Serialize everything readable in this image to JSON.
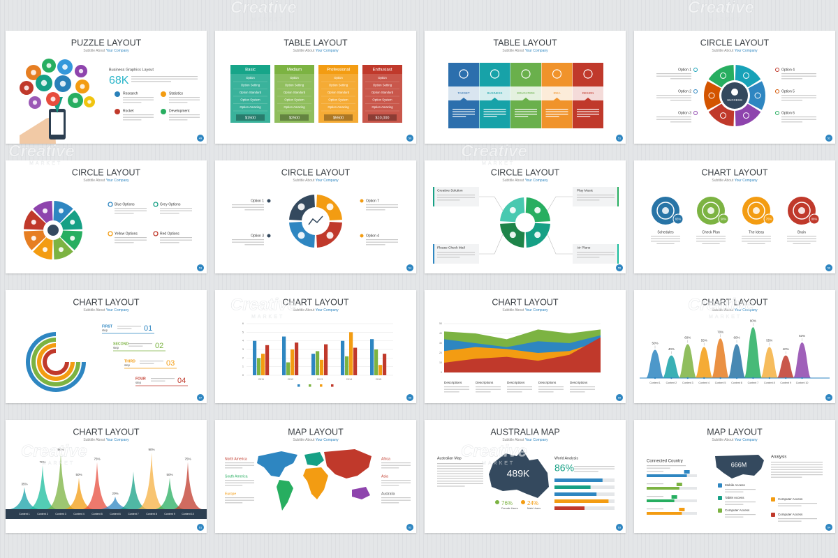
{
  "watermark": {
    "brand": "Creative",
    "sub": "MARKET"
  },
  "slide_subtitle": [
    "Subtitle About",
    "Your Company"
  ],
  "slides": [
    {
      "kind": "puzzle",
      "title": "PUZZLE LAYOUT",
      "page": 49,
      "heading": "Business Graphics Layout",
      "stat": "68K",
      "items": [
        "Research",
        "Statistics",
        "Rocket",
        "Development"
      ]
    },
    {
      "kind": "pricing",
      "title": "TABLE LAYOUT",
      "page": 50,
      "options": [
        "Option",
        "Option Setting",
        "Option Standard",
        "Option System",
        "Option Amazing"
      ],
      "plans": [
        {
          "name": "Basic",
          "color": "#17a589",
          "price": "$1500"
        },
        {
          "name": "Medium",
          "color": "#7cb342",
          "price": "$2500"
        },
        {
          "name": "Professional",
          "color": "#f39c12",
          "price": "$5500"
        },
        {
          "name": "Enthusiast",
          "color": "#c0392b",
          "price": "$10,000"
        }
      ]
    },
    {
      "kind": "steps",
      "title": "TABLE LAYOUT",
      "page": 51,
      "steps": [
        {
          "label": "TARGET",
          "color": "#2c6fad"
        },
        {
          "label": "BUSINESS",
          "color": "#17a2a8"
        },
        {
          "label": "EDUCATION",
          "color": "#6ab04c"
        },
        {
          "label": "IDEA",
          "color": "#f0932b"
        },
        {
          "label": "DESIGN",
          "color": "#c0392b"
        }
      ]
    },
    {
      "kind": "ring",
      "title": "CIRCLE LAYOUT",
      "page": 52,
      "center": "SUCCESS",
      "options": [
        "Option 1",
        "Option 2",
        "Option 3",
        "Option 4",
        "Option 5",
        "Option 6"
      ]
    },
    {
      "kind": "gear",
      "title": "CIRCLE LAYOUT",
      "page": 53,
      "options": [
        "Blue Options",
        "Grey Options",
        "Yellow Options",
        "Red Options"
      ]
    },
    {
      "kind": "cycle",
      "title": "CIRCLE LAYOUT",
      "page": 54,
      "options": [
        "Option 1",
        "Option 7",
        "Option 3",
        "Option 4"
      ]
    },
    {
      "kind": "cycleBoxes",
      "title": "CIRCLE LAYOUT",
      "page": 55,
      "options": [
        "Creative Solution",
        "Play Music",
        "Please Check Mail",
        "Air Plane"
      ]
    },
    {
      "kind": "badges",
      "title": "CHART LAYOUT",
      "page": 56,
      "items": [
        {
          "label": "Schedules",
          "percent": "65%",
          "color": "#2874a6"
        },
        {
          "label": "Check Plan",
          "percent": "50%",
          "color": "#7cb342"
        },
        {
          "label": "The Ideas",
          "percent": "75%",
          "color": "#f39c12"
        },
        {
          "label": "Brain",
          "percent": "86%",
          "color": "#c0392b"
        }
      ]
    },
    {
      "kind": "rings",
      "title": "CHART LAYOUT",
      "page": 57,
      "steps": [
        {
          "name": "FIRST",
          "word": "step",
          "number": "01",
          "color": "#2e86c1"
        },
        {
          "name": "SECOND",
          "word": "step",
          "number": "02",
          "color": "#7cb342"
        },
        {
          "name": "THIRD",
          "word": "step",
          "number": "03",
          "color": "#f39c12"
        },
        {
          "name": "FOUR",
          "word": "step",
          "number": "04",
          "color": "#c0392b"
        }
      ]
    },
    {
      "kind": "bars",
      "title": "CHART LAYOUT",
      "page": 58,
      "categories": [
        "2011",
        "2012",
        "2013",
        "2014",
        "2015"
      ],
      "ylim": [
        0,
        6
      ],
      "yticks": [
        0,
        1,
        2,
        3,
        4,
        5,
        6
      ],
      "series": [
        {
          "color": "#2e86c1",
          "values": [
            4,
            4.5,
            2.5,
            4,
            4.2
          ]
        },
        {
          "color": "#7cb342",
          "values": [
            2,
            1.5,
            2.8,
            2.2,
            3
          ]
        },
        {
          "color": "#f39c12",
          "values": [
            2.5,
            3,
            1.8,
            5,
            1.2
          ]
        },
        {
          "color": "#c0392b",
          "values": [
            3.5,
            3.8,
            3.6,
            3.2,
            2.5
          ]
        }
      ]
    },
    {
      "kind": "area",
      "title": "CHART LAYOUT",
      "page": 59,
      "ylim": [
        0,
        50
      ],
      "yticks": [
        0,
        10,
        20,
        30,
        40,
        50
      ],
      "descriptions": [
        "Descriptions",
        "Descriptions",
        "Descriptions",
        "Descriptions",
        "Descriptions"
      ],
      "layers": [
        {
          "color": "#7cb342",
          "values": [
            42,
            40,
            34,
            44,
            40,
            44
          ]
        },
        {
          "color": "#2e86c1",
          "values": [
            34,
            30,
            26,
            32,
            30,
            38
          ]
        },
        {
          "color": "#f39c12",
          "values": [
            22,
            26,
            24,
            20,
            22,
            32
          ]
        },
        {
          "color": "#c0392b",
          "values": [
            10,
            14,
            16,
            12,
            18,
            36
          ]
        }
      ]
    },
    {
      "kind": "peaks",
      "title": "CHART LAYOUT",
      "page": 60,
      "ylim": [
        0,
        100
      ],
      "categories": [
        "Content 1",
        "Content 2",
        "Content 3",
        "Content 4",
        "Content 5",
        "Content 6",
        "Content 7",
        "Content 8",
        "Content 9",
        "Content 10"
      ],
      "values": [
        50,
        40,
        60,
        55,
        70,
        60,
        90,
        55,
        40,
        63
      ],
      "value_labels": [
        "50%",
        "40%",
        "60%",
        "55%",
        "70%",
        "60%",
        "90%",
        "55%",
        "40%",
        "63%"
      ],
      "colors": [
        "#2e86c1",
        "#17a2a8",
        "#7cb342",
        "#f39c12",
        "#e67e22",
        "#2874a6",
        "#27ae60",
        "#f5b041",
        "#c0392b",
        "#8e44ad"
      ]
    },
    {
      "kind": "spikes",
      "title": "CHART LAYOUT",
      "page": 61,
      "ylim": [
        0,
        100
      ],
      "categories": [
        "Content 1",
        "Content 2",
        "Content 3",
        "Content 4",
        "Content 5",
        "Content 6",
        "Content 7",
        "Content 8",
        "Content 9",
        "Content 10"
      ],
      "values": [
        35,
        70,
        90,
        50,
        75,
        20,
        60,
        90,
        50,
        75
      ],
      "value_labels": [
        "35%",
        "70%",
        "90%",
        "50%",
        "75%",
        "20%",
        null,
        "90%",
        "50%",
        "75%"
      ],
      "colors": [
        "#17a2a8",
        "#1abc9c",
        "#7cb342",
        "#f39c12",
        "#e74c3c",
        "#2e86c1",
        "#16a085",
        "#f5b041",
        "#27ae60",
        "#c0392b"
      ]
    },
    {
      "kind": "world",
      "title": "MAP LAYOUT",
      "page": 62,
      "regions": [
        "North America",
        "South America",
        "Europe",
        "Africa",
        "Asia",
        "Australia"
      ]
    },
    {
      "kind": "australia",
      "title": "AUSTRALIA MAP",
      "page": 63,
      "heading": "Australian Map",
      "stat": "489K",
      "analysis": "World Analysis",
      "percent": "86%",
      "female": "76%",
      "male": "24%",
      "female_label": "Female Users",
      "male_label": "Male Users"
    },
    {
      "kind": "usmap",
      "title": "MAP LAYOUT",
      "page": 64,
      "heading": "Connected Country",
      "stat": "666M",
      "analysis": "Analysis",
      "access": [
        "Mobile Access",
        "Tablet Access",
        "Computer Access"
      ],
      "access_right": [
        "Computer Access",
        "Computer Access"
      ]
    }
  ]
}
